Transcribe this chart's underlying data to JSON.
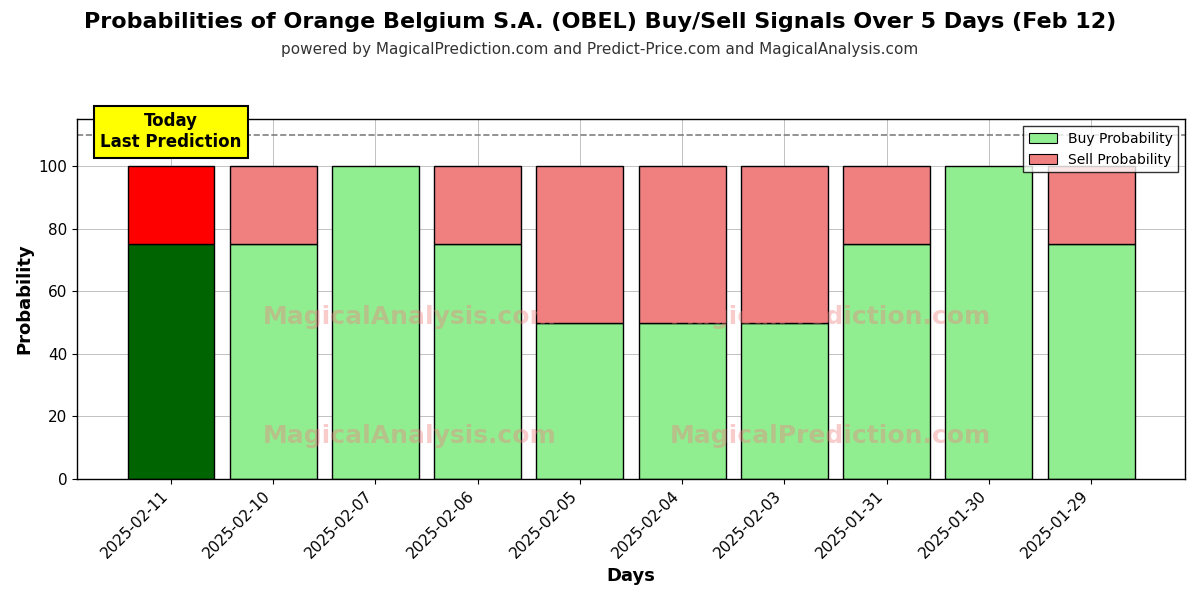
{
  "title": "Probabilities of Orange Belgium S.A. (OBEL) Buy/Sell Signals Over 5 Days (Feb 12)",
  "subtitle": "powered by MagicalPrediction.com and Predict-Price.com and MagicalAnalysis.com",
  "xlabel": "Days",
  "ylabel": "Probability",
  "categories": [
    "2025-02-11",
    "2025-02-10",
    "2025-02-07",
    "2025-02-06",
    "2025-02-05",
    "2025-02-04",
    "2025-02-03",
    "2025-01-31",
    "2025-01-30",
    "2025-01-29"
  ],
  "buy_values": [
    75,
    75,
    100,
    75,
    50,
    50,
    50,
    75,
    100,
    75
  ],
  "sell_values": [
    25,
    25,
    0,
    25,
    50,
    50,
    50,
    25,
    0,
    25
  ],
  "today_idx": 0,
  "today_buy_color": "#006400",
  "today_sell_color": "#FF0000",
  "buy_color": "#90EE90",
  "sell_color": "#F08080",
  "today_label_bg": "#FFFF00",
  "today_label_text": "Today\nLast Prediction",
  "legend_buy": "Buy Probability",
  "legend_sell": "Sell Probability",
  "ylim": [
    0,
    115
  ],
  "dashed_line_y": 110,
  "bar_edge_color": "#000000",
  "bar_linewidth": 1.0,
  "bar_width": 0.85,
  "grid_color": "#aaaaaa",
  "title_fontsize": 16,
  "subtitle_fontsize": 11,
  "axis_label_fontsize": 13,
  "tick_fontsize": 11,
  "watermark1_text": "MagicalAnalysis.com",
  "watermark2_text": "MagicalPrediction.com",
  "watermark_color": "#F08080",
  "watermark_alpha": 0.4
}
